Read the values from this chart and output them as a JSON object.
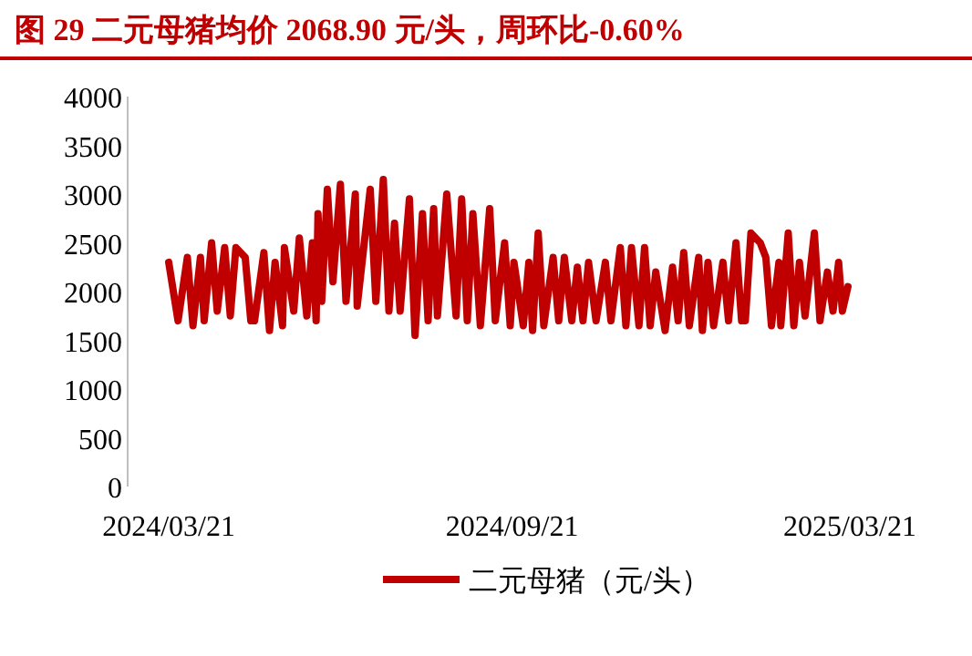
{
  "chart_data": {
    "type": "line",
    "title": "图 29 二元母猪均价 2068.90 元/头，周环比-0.60%",
    "x": [
      "2024-03-21",
      "2024-03-26",
      "2024-03-31",
      "2024-04-03",
      "2024-04-07",
      "2024-04-09",
      "2024-04-13",
      "2024-04-16",
      "2024-04-20",
      "2024-04-23",
      "2024-04-26",
      "2024-05-01",
      "2024-05-04",
      "2024-05-06",
      "2024-05-11",
      "2024-05-14",
      "2024-05-17",
      "2024-05-21",
      "2024-05-22",
      "2024-05-27",
      "2024-05-30",
      "2024-06-03",
      "2024-06-06",
      "2024-06-08",
      "2024-06-09",
      "2024-06-11",
      "2024-06-14",
      "2024-06-17",
      "2024-06-21",
      "2024-06-24",
      "2024-06-29",
      "2024-06-30",
      "2024-07-07",
      "2024-07-10",
      "2024-07-14",
      "2024-07-17",
      "2024-07-20",
      "2024-07-23",
      "2024-07-28",
      "2024-07-31",
      "2024-08-04",
      "2024-08-07",
      "2024-08-10",
      "2024-08-12",
      "2024-08-17",
      "2024-08-22",
      "2024-08-25",
      "2024-08-28",
      "2024-08-31",
      "2024-09-04",
      "2024-09-09",
      "2024-09-12",
      "2024-09-17",
      "2024-09-20",
      "2024-09-22",
      "2024-09-27",
      "2024-09-30",
      "2024-10-02",
      "2024-10-05",
      "2024-10-08",
      "2024-10-13",
      "2024-10-16",
      "2024-10-19",
      "2024-10-23",
      "2024-10-26",
      "2024-10-29",
      "2024-11-01",
      "2024-11-05",
      "2024-11-10",
      "2024-11-13",
      "2024-11-18",
      "2024-11-21",
      "2024-11-24",
      "2024-11-28",
      "2024-12-01",
      "2024-12-04",
      "2024-12-07",
      "2024-12-12",
      "2024-12-16",
      "2024-12-19",
      "2024-12-22",
      "2024-12-25",
      "2024-12-30",
      "2025-01-01",
      "2025-01-04",
      "2025-01-07",
      "2025-01-12",
      "2025-01-15",
      "2025-01-19",
      "2025-01-22",
      "2025-01-24",
      "2025-01-27",
      "2025-02-01",
      "2025-02-04",
      "2025-02-07",
      "2025-02-11",
      "2025-02-12",
      "2025-02-16",
      "2025-02-19",
      "2025-02-22",
      "2025-02-25",
      "2025-03-02",
      "2025-03-05",
      "2025-03-09",
      "2025-03-12",
      "2025-03-15",
      "2025-03-17",
      "2025-03-20"
    ],
    "series": [
      {
        "name": "二元母猪（元/头）",
        "color": "#c00000",
        "values": [
          2300,
          1700,
          2350,
          1650,
          2350,
          1700,
          2500,
          1800,
          2450,
          1750,
          2450,
          2350,
          1700,
          1700,
          2400,
          1600,
          2300,
          1650,
          2450,
          1800,
          2550,
          1750,
          2500,
          1700,
          2800,
          1900,
          3050,
          2100,
          3100,
          1900,
          3000,
          1850,
          3050,
          1900,
          3150,
          1800,
          2700,
          1800,
          2950,
          1550,
          2800,
          1700,
          2850,
          1750,
          3000,
          1750,
          2950,
          1700,
          2800,
          1650,
          2850,
          1700,
          2500,
          1650,
          2300,
          1650,
          2300,
          1600,
          2600,
          1650,
          2350,
          1700,
          2350,
          1700,
          2250,
          1700,
          2300,
          1700,
          2300,
          1700,
          2450,
          1650,
          2450,
          1650,
          2450,
          1650,
          2200,
          1600,
          2250,
          1700,
          2400,
          1650,
          2350,
          1600,
          2300,
          1650,
          2300,
          1700,
          2500,
          1700,
          1700,
          2600,
          2500,
          2350,
          1650,
          2300,
          1650,
          2600,
          1650,
          2300,
          1750,
          2600,
          1700,
          2200,
          1800,
          2300,
          1800,
          2050
        ]
      }
    ],
    "xlim": [
      "2024-02-28",
      "2025-03-21"
    ],
    "xticks": [
      {
        "value": "2024-03-21",
        "label": "2024/03/21"
      },
      {
        "value": "2024-09-21",
        "label": "2024/09/21"
      },
      {
        "value": "2025-03-21",
        "label": "2025/03/21"
      }
    ],
    "ylim": [
      0,
      4000
    ],
    "yticks": [
      0,
      500,
      1000,
      1500,
      2000,
      2500,
      3000,
      3500,
      4000
    ],
    "legend": "bottom"
  }
}
